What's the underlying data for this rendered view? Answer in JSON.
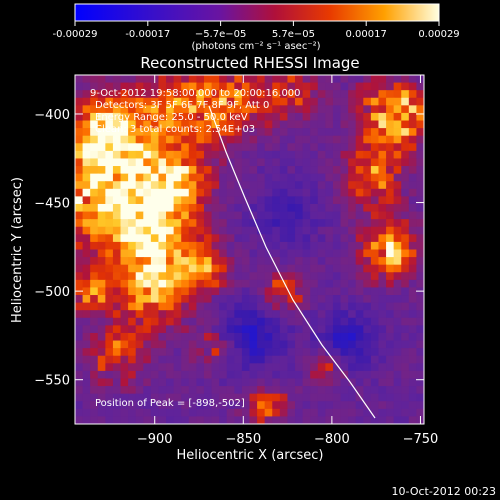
{
  "colorbar": {
    "ticks": [
      "-0.00029",
      "-0.00017",
      "−5.7e−05",
      "5.7e−05",
      "0.00017",
      "0.00029"
    ],
    "units_line": "(photons cm⁻² s⁻¹ asec⁻²)"
  },
  "title": "Reconstructed RHESSI Image",
  "annotations": {
    "time_range": "9-Oct-2012 19:58:00.000 to 20:00:16.000",
    "detectors": "Detectors: 3F 5F 6F 7F 8F 9F, Att 0",
    "energy": "Energy Range: 25.0 - 50.0 keV",
    "clean": "Clean: 3 total counts: 2.54E+03",
    "peak": "Position of Peak = [-898,-502]"
  },
  "timestamp": "10-Oct-2012 00:23",
  "colors": {
    "background": "#000000",
    "axis": "#ffffff",
    "limb": "#ffffff"
  },
  "chart_data": {
    "type": "heatmap",
    "title": "Reconstructed RHESSI Image",
    "xlabel": "Heliocentric X (arcsec)",
    "ylabel": "Heliocentric Y (arcsec)",
    "xlim": [
      -945,
      -748
    ],
    "ylim": [
      -575,
      -378
    ],
    "x_ticks": [
      -900,
      -850,
      -800,
      -750
    ],
    "y_ticks": [
      -400,
      -450,
      -500,
      -550
    ],
    "colorbar_range": [
      -0.00029,
      0.00029
    ],
    "colormap": "blue-purple-red-orange-yellow-white",
    "peak_position": [
      -898,
      -502
    ],
    "grid_columns": 46,
    "grid_rows": 46
  }
}
